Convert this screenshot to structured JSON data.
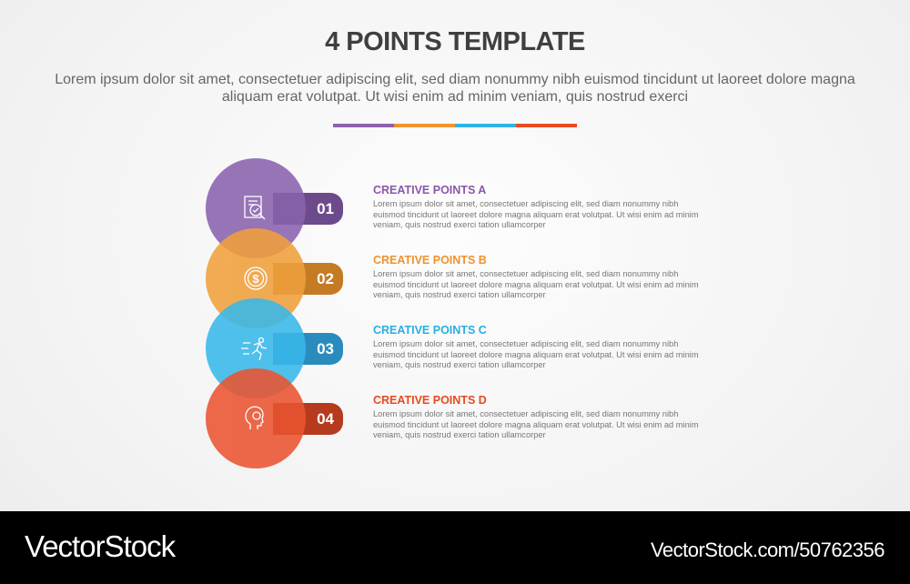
{
  "header": {
    "title": "4 POINTS TEMPLATE",
    "subtitle": "Lorem ipsum dolor sit amet, consectetuer adipiscing elit, sed diam nonummy nibh euismod tincidunt ut laoreet dolore magna aliquam erat volutpat. Ut wisi enim ad minim veniam, quis nostrud exerci"
  },
  "divider_colors": [
    "#8e62ad",
    "#ee9530",
    "#2fb4e8",
    "#e84c22"
  ],
  "points": [
    {
      "number": "01",
      "title": "CREATIVE POINTS A",
      "body": "Lorem ipsum dolor sit amet, consectetuer adipiscing elit, sed diam nonummy nibh euismod tincidunt ut laoreet dolore magna aliquam erat volutpat. Ut wisi enim ad minim veniam, quis nostrud exerci tation ullamcorper",
      "icon": "document-search-icon",
      "color": "#8a62ae",
      "tab_color": "#6d4a8c",
      "title_color": "#8a58aa"
    },
    {
      "number": "02",
      "title": "CREATIVE POINTS B",
      "body": "Lorem ipsum dolor sit amet, consectetuer adipiscing elit, sed diam nonummy nibh euismod tincidunt ut laoreet dolore magna aliquam erat volutpat. Ut wisi enim ad minim veniam, quis nostrud exerci tation ullamcorper",
      "icon": "dollar-coin-icon",
      "color": "#f0a03c",
      "tab_color": "#c57a24",
      "title_color": "#f0922e"
    },
    {
      "number": "03",
      "title": "CREATIVE POINTS C",
      "body": "Lorem ipsum dolor sit amet, consectetuer adipiscing elit, sed diam nonummy nibh euismod tincidunt ut laoreet dolore magna aliquam erat volutpat. Ut wisi enim ad minim veniam, quis nostrud exerci tation ullamcorper",
      "icon": "running-person-icon",
      "color": "#38b8ea",
      "tab_color": "#2a8cbd",
      "title_color": "#2aaee2"
    },
    {
      "number": "04",
      "title": "CREATIVE POINTS D",
      "body": "Lorem ipsum dolor sit amet, consectetuer adipiscing elit, sed diam nonummy nibh euismod tincidunt ut laoreet dolore magna aliquam erat volutpat. Ut wisi enim ad minim veniam, quis nostrud exerci tation ullamcorper",
      "icon": "head-gear-icon",
      "color": "#ea5430",
      "tab_color": "#b53a1e",
      "title_color": "#e64a22"
    }
  ],
  "footer": {
    "logo": "VectorStock",
    "url": "VectorStock.com/50762356"
  }
}
